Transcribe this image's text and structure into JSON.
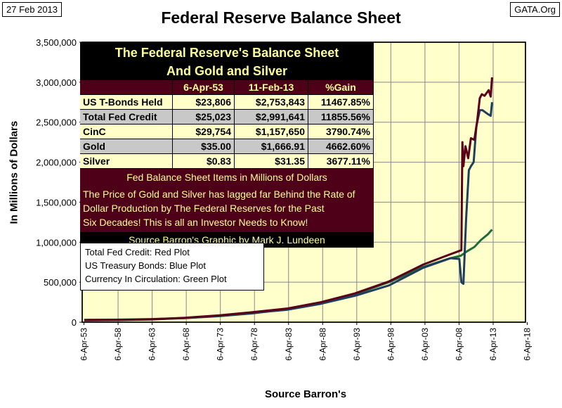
{
  "header": {
    "date": "27 Feb 2013",
    "source_tag": "GATA.Org"
  },
  "table": {
    "title1": "The Federal Reserve's Balance Sheet",
    "title2": "And Gold and Silver",
    "columns": [
      "",
      "6-Apr-53",
      "11-Feb-13",
      "%Gain"
    ],
    "rows": [
      [
        "US T-Bonds Held",
        "$23,806",
        "$2,753,843",
        "11467.85%"
      ],
      [
        "Total Fed Credit",
        "$25,023",
        "$2,991,641",
        "11855.56%"
      ],
      [
        "CinC",
        "$29,754",
        "$1,157,650",
        "3790.74%"
      ],
      [
        "Gold",
        "$35.00",
        "$1,666.91",
        "4662.60%"
      ],
      [
        "Silver",
        "$0.83",
        "$31.35",
        "3677.11%"
      ]
    ],
    "note": "Fed Balance Sheet Items in Millions of Dollars",
    "message": [
      "The Price of Gold and Silver has lagged far Behind the Rate of",
      "Dollar Production by The Federal Reserves for the Past",
      "Six Decades!  This is all an Investor Needs to Know!"
    ],
    "credit": "Source Barron's    Graphic by Mark J. Lundeen"
  },
  "legend": [
    "Total Fed Credit:  Red Plot",
    "US Treasury Bonds: Blue Plot",
    "Currency In Circulation: Green Plot"
  ],
  "chart_data": {
    "type": "line",
    "title": "Federal Reserve Balance Sheet",
    "xlabel": "Source Barron's",
    "ylabel": "In  Millions  of Dollars",
    "ylim": [
      0,
      3500000
    ],
    "xlim": [
      1953,
      2018
    ],
    "yticks": [
      "0",
      "500,000",
      "1,000,000",
      "1,500,000",
      "2,000,000",
      "2,500,000",
      "3,000,000",
      "3,500,000"
    ],
    "xticks": [
      "6-Apr-53",
      "6-Apr-58",
      "6-Apr-63",
      "6-Apr-68",
      "6-Apr-73",
      "6-Apr-78",
      "6-Apr-83",
      "6-Apr-88",
      "6-Apr-93",
      "6-Apr-98",
      "6-Apr-03",
      "6-Apr-08",
      "6-Apr-13",
      "6-Apr-18"
    ],
    "grid": true,
    "series": [
      {
        "name": "Total Fed Credit",
        "color": "#5a0018",
        "points": [
          [
            1953.3,
            25000
          ],
          [
            1958,
            28000
          ],
          [
            1963,
            36000
          ],
          [
            1968,
            55000
          ],
          [
            1973,
            85000
          ],
          [
            1978,
            125000
          ],
          [
            1983,
            170000
          ],
          [
            1988,
            250000
          ],
          [
            1993,
            360000
          ],
          [
            1998,
            510000
          ],
          [
            2003,
            720000
          ],
          [
            2007,
            850000
          ],
          [
            2008.6,
            900000
          ],
          [
            2008.75,
            2250000
          ],
          [
            2008.9,
            1950000
          ],
          [
            2009.2,
            2200000
          ],
          [
            2009.6,
            2050000
          ],
          [
            2010,
            2300000
          ],
          [
            2010.5,
            2280000
          ],
          [
            2010.9,
            2500000
          ],
          [
            2011.3,
            2800000
          ],
          [
            2011.6,
            2850000
          ],
          [
            2012,
            2830000
          ],
          [
            2012.6,
            2900000
          ],
          [
            2012.9,
            2820000
          ],
          [
            2013.1,
            3060000
          ]
        ]
      },
      {
        "name": "US Treasury Bonds",
        "color": "#1f3d5c",
        "points": [
          [
            1953.3,
            24000
          ],
          [
            1958,
            26000
          ],
          [
            1963,
            33000
          ],
          [
            1968,
            52000
          ],
          [
            1973,
            78000
          ],
          [
            1978,
            115000
          ],
          [
            1983,
            155000
          ],
          [
            1988,
            230000
          ],
          [
            1993,
            330000
          ],
          [
            1998,
            460000
          ],
          [
            2003,
            680000
          ],
          [
            2007,
            800000
          ],
          [
            2008.3,
            790000
          ],
          [
            2008.6,
            500000
          ],
          [
            2008.9,
            480000
          ],
          [
            2009.3,
            1300000
          ],
          [
            2009.7,
            1900000
          ],
          [
            2010,
            1950000
          ],
          [
            2010.4,
            2000000
          ],
          [
            2010.8,
            2450000
          ],
          [
            2011.3,
            2650000
          ],
          [
            2011.7,
            2650000
          ],
          [
            2012.5,
            2600000
          ],
          [
            2012.9,
            2580000
          ],
          [
            2013.1,
            2750000
          ]
        ]
      },
      {
        "name": "Currency In Circulation",
        "color": "#1f6b3a",
        "points": [
          [
            1953.3,
            30000
          ],
          [
            1958,
            32000
          ],
          [
            1963,
            38000
          ],
          [
            1968,
            50000
          ],
          [
            1973,
            75000
          ],
          [
            1978,
            110000
          ],
          [
            1983,
            165000
          ],
          [
            1988,
            240000
          ],
          [
            1993,
            350000
          ],
          [
            1998,
            500000
          ],
          [
            2003,
            690000
          ],
          [
            2007,
            800000
          ],
          [
            2008.5,
            830000
          ],
          [
            2009.5,
            890000
          ],
          [
            2010.5,
            940000
          ],
          [
            2011.5,
            1030000
          ],
          [
            2012.5,
            1100000
          ],
          [
            2013.1,
            1157650
          ]
        ]
      }
    ]
  }
}
